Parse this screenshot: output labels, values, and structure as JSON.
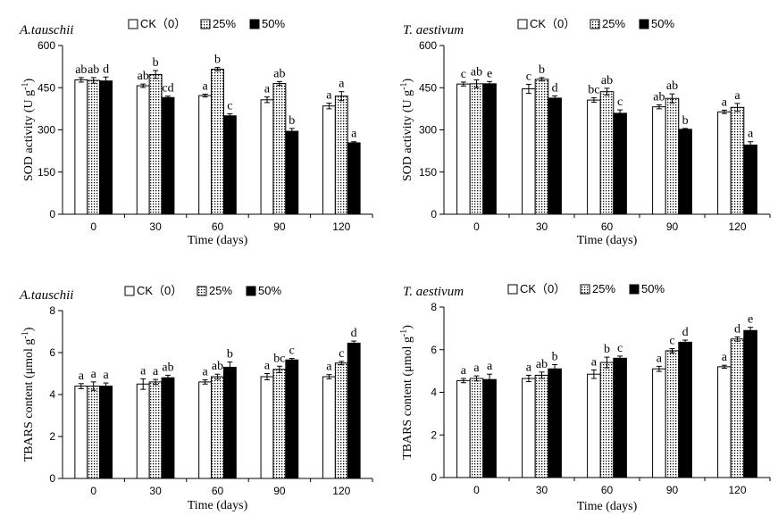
{
  "patterns": {
    "ck": "#ffffff",
    "p25": "dotted",
    "p50": "#000000"
  },
  "chart_data": [
    {
      "type": "bar",
      "title": "A.tauschii",
      "xlabel": "Time (days)",
      "ylabel": "SOD activity (U g",
      "ylabel_sup": "-1",
      "ylabel_end": ")",
      "categories": [
        "0",
        "30",
        "60",
        "90",
        "120"
      ],
      "ylim": [
        0,
        600
      ],
      "yticks": [
        "0",
        "150",
        "300",
        "450",
        "600"
      ],
      "legend": {
        "position": "top",
        "entries": [
          "CK（0）",
          "25%",
          "50%"
        ]
      },
      "series": [
        {
          "name": "CK（0）",
          "values": [
            478,
            457,
            422,
            407,
            385
          ],
          "errors": [
            8,
            6,
            5,
            10,
            10
          ],
          "labels": [
            "ab",
            "ab",
            "a",
            "a",
            "a"
          ]
        },
        {
          "name": "25%",
          "values": [
            476,
            497,
            516,
            465,
            420
          ],
          "errors": [
            10,
            14,
            6,
            7,
            16
          ],
          "labels": [
            "ab",
            "b",
            "b",
            "ab",
            "a"
          ]
        },
        {
          "name": "50%",
          "values": [
            474,
            415,
            350,
            295,
            254
          ],
          "errors": [
            14,
            5,
            7,
            10,
            4
          ],
          "labels": [
            "d",
            "cd",
            "c",
            "b",
            "a"
          ]
        }
      ]
    },
    {
      "type": "bar",
      "title": "T. aestivum",
      "xlabel": "Time (days)",
      "ylabel": "SOD activity (U g",
      "ylabel_sup": "-1",
      "ylabel_end": ")",
      "categories": [
        "0",
        "30",
        "60",
        "90",
        "120"
      ],
      "ylim": [
        0,
        600
      ],
      "yticks": [
        "0",
        "150",
        "300",
        "450",
        "600"
      ],
      "legend": {
        "position": "top",
        "entries": [
          "CK（0）",
          "25%",
          "50%"
        ]
      },
      "series": [
        {
          "name": "CK（0）",
          "values": [
            463,
            446,
            406,
            382,
            364
          ],
          "errors": [
            7,
            16,
            8,
            7,
            6
          ],
          "labels": [
            "c",
            "c",
            "bc",
            "ab",
            "a"
          ]
        },
        {
          "name": "25%",
          "values": [
            464,
            480,
            436,
            412,
            380
          ],
          "errors": [
            14,
            6,
            12,
            16,
            14
          ],
          "labels": [
            "ab",
            "b",
            "ab",
            "ab",
            "a"
          ]
        },
        {
          "name": "50%",
          "values": [
            464,
            413,
            359,
            302,
            246
          ],
          "errors": [
            8,
            8,
            12,
            3,
            12
          ],
          "labels": [
            "e",
            "d",
            "c",
            "b",
            "a"
          ]
        }
      ]
    },
    {
      "type": "bar",
      "title": "A.tauschii",
      "xlabel": "Time (days)",
      "ylabel": "TBARS content (μmol g",
      "ylabel_sup": "-1",
      "ylabel_end": ")",
      "categories": [
        "0",
        "30",
        "60",
        "90",
        "120"
      ],
      "ylim": [
        0,
        8
      ],
      "yticks": [
        "0",
        "2",
        "4",
        "6",
        "8"
      ],
      "legend": {
        "position": "top",
        "entries": [
          "CK（0）",
          "25%",
          "50%"
        ]
      },
      "series": [
        {
          "name": "CK（0）",
          "values": [
            4.4,
            4.5,
            4.6,
            4.85,
            4.85
          ],
          "errors": [
            0.12,
            0.25,
            0.1,
            0.15,
            0.1
          ],
          "labels": [
            "a",
            "a",
            "a",
            "a",
            "a"
          ]
        },
        {
          "name": "25%",
          "values": [
            4.4,
            4.6,
            4.85,
            5.2,
            5.5
          ],
          "errors": [
            0.2,
            0.12,
            0.12,
            0.15,
            0.08
          ],
          "labels": [
            "a",
            "a",
            "ab",
            "bc",
            "c"
          ]
        },
        {
          "name": "50%",
          "values": [
            4.4,
            4.8,
            5.3,
            5.65,
            6.45
          ],
          "errors": [
            0.15,
            0.12,
            0.25,
            0.07,
            0.1
          ],
          "labels": [
            "a",
            "ab",
            "b",
            "c",
            "d"
          ]
        }
      ]
    },
    {
      "type": "bar",
      "title": "T. aestivum",
      "xlabel": "Time (days)",
      "ylabel": "TBARS content (μmol g",
      "ylabel_sup": "-1",
      "ylabel_end": ")",
      "categories": [
        "0",
        "30",
        "60",
        "90",
        "120"
      ],
      "ylim": [
        0,
        8
      ],
      "yticks": [
        "0",
        "2",
        "4",
        "6",
        "8"
      ],
      "legend": {
        "position": "top",
        "entries": [
          "CK（0）",
          "25%",
          "50%"
        ]
      },
      "series": [
        {
          "name": "CK（0）",
          "values": [
            4.55,
            4.65,
            4.85,
            5.1,
            5.2
          ],
          "errors": [
            0.1,
            0.15,
            0.2,
            0.12,
            0.07
          ],
          "labels": [
            "a",
            "a",
            "a",
            "a",
            "a"
          ]
        },
        {
          "name": "25%",
          "values": [
            4.65,
            4.8,
            5.4,
            5.95,
            6.5
          ],
          "errors": [
            0.12,
            0.15,
            0.25,
            0.1,
            0.1
          ],
          "labels": [
            "a",
            "ab",
            "b",
            "c",
            "d"
          ]
        },
        {
          "name": "50%",
          "values": [
            4.6,
            5.1,
            5.6,
            6.35,
            6.9
          ],
          "errors": [
            0.25,
            0.2,
            0.1,
            0.1,
            0.15
          ],
          "labels": [
            "a",
            "b",
            "c",
            "d",
            "e"
          ]
        }
      ]
    }
  ]
}
